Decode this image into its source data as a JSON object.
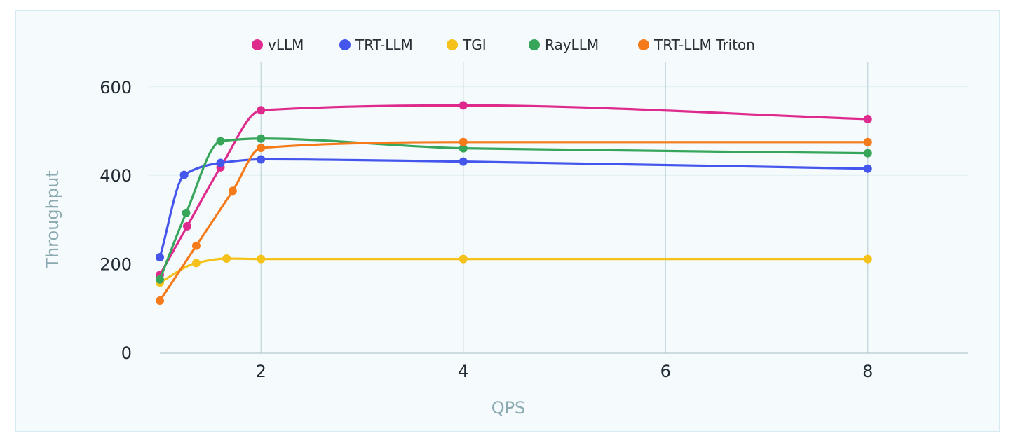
{
  "chart_data": {
    "type": "line",
    "xlabel": "QPS",
    "ylabel": "Throughput",
    "xlim": [
      0.8,
      9
    ],
    "ylim": [
      0,
      600
    ],
    "xticks": [
      2,
      4,
      6,
      8
    ],
    "yticks": [
      0,
      200,
      400,
      600
    ],
    "grid": true,
    "legend_position": "top",
    "series": [
      {
        "name": "vLLM",
        "color": "#df2a8d",
        "points": [
          [
            1,
            175
          ],
          [
            1.27,
            285
          ],
          [
            1.6,
            418
          ],
          [
            2,
            547
          ],
          [
            4,
            558
          ],
          [
            8,
            527
          ]
        ]
      },
      {
        "name": "TRT-LLM",
        "color": "#4556ec",
        "points": [
          [
            1,
            215
          ],
          [
            1.24,
            401
          ],
          [
            1.6,
            428
          ],
          [
            2,
            436
          ],
          [
            4,
            431
          ],
          [
            8,
            415
          ]
        ]
      },
      {
        "name": "TGI",
        "color": "#f4c21b",
        "points": [
          [
            1,
            158
          ],
          [
            1.36,
            202
          ],
          [
            1.66,
            212
          ],
          [
            2,
            211
          ],
          [
            4,
            211
          ],
          [
            8,
            211
          ]
        ]
      },
      {
        "name": "RayLLM",
        "color": "#37a65b",
        "points": [
          [
            1,
            165
          ],
          [
            1.26,
            315
          ],
          [
            1.6,
            477
          ],
          [
            2,
            483
          ],
          [
            4,
            461
          ],
          [
            8,
            450
          ]
        ]
      },
      {
        "name": "TRT-LLM Triton",
        "color": "#f47a1a",
        "points": [
          [
            1,
            117
          ],
          [
            1.36,
            241
          ],
          [
            1.72,
            365
          ],
          [
            2,
            462
          ],
          [
            4,
            475
          ],
          [
            8,
            475
          ]
        ]
      }
    ]
  }
}
